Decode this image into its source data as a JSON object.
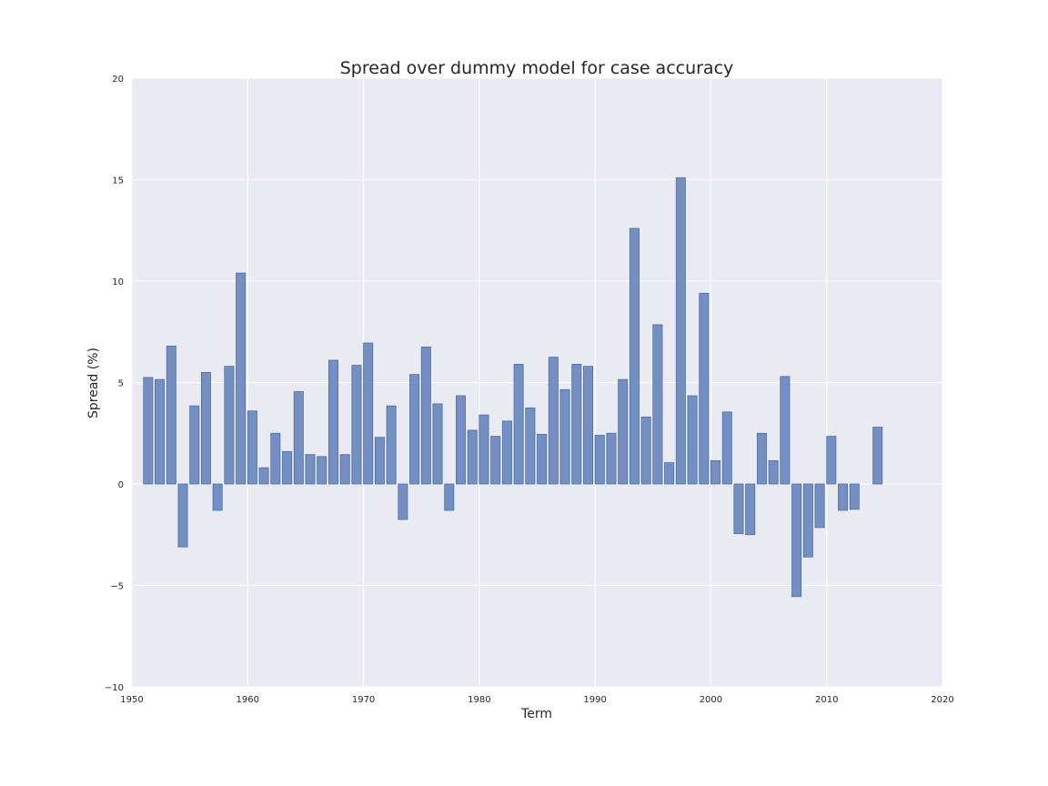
{
  "chart_data": {
    "type": "bar",
    "title": "Spread over dummy model for case accuracy",
    "xlabel": "Term",
    "ylabel": "Spread (%)",
    "xlim": [
      1950,
      2020
    ],
    "ylim": [
      -10,
      20
    ],
    "xticks": [
      "1950",
      "1960",
      "1970",
      "1980",
      "1990",
      "2000",
      "2010",
      "2020"
    ],
    "yticks": [
      "20",
      "15",
      "10",
      "5",
      "0",
      "−5",
      "−10"
    ],
    "xtick_values": [
      1950,
      1960,
      1970,
      1980,
      1990,
      2000,
      2010,
      2020
    ],
    "ytick_values": [
      20,
      15,
      10,
      5,
      0,
      -5,
      -10
    ],
    "grid": true,
    "background": "#eaeaf2",
    "bar_color": "#7490c3",
    "x": [
      1951,
      1952,
      1953,
      1954,
      1955,
      1956,
      1957,
      1958,
      1959,
      1960,
      1961,
      1962,
      1963,
      1964,
      1965,
      1966,
      1967,
      1968,
      1969,
      1970,
      1971,
      1972,
      1973,
      1974,
      1975,
      1976,
      1977,
      1978,
      1979,
      1980,
      1981,
      1982,
      1983,
      1984,
      1985,
      1986,
      1987,
      1988,
      1989,
      1990,
      1991,
      1992,
      1993,
      1994,
      1995,
      1996,
      1997,
      1998,
      1999,
      2000,
      2001,
      2002,
      2003,
      2004,
      2005,
      2006,
      2007,
      2008,
      2009,
      2010,
      2011,
      2012,
      2014
    ],
    "values": [
      5.25,
      5.15,
      6.8,
      -3.1,
      3.85,
      5.5,
      -1.3,
      5.8,
      10.4,
      3.6,
      0.8,
      2.5,
      1.6,
      4.55,
      1.45,
      1.35,
      6.1,
      1.45,
      5.85,
      6.95,
      2.3,
      3.85,
      -1.75,
      5.4,
      6.75,
      3.95,
      -1.3,
      4.35,
      2.65,
      3.4,
      2.35,
      3.1,
      5.9,
      3.75,
      2.45,
      6.25,
      4.65,
      5.9,
      5.8,
      2.4,
      2.5,
      5.15,
      12.6,
      3.3,
      7.85,
      1.05,
      15.1,
      4.35,
      9.4,
      1.15,
      3.55,
      -2.45,
      -2.5,
      2.5,
      1.15,
      5.3,
      -5.55,
      -3.6,
      -2.15,
      2.35,
      -1.3,
      -1.25,
      2.8
    ]
  }
}
